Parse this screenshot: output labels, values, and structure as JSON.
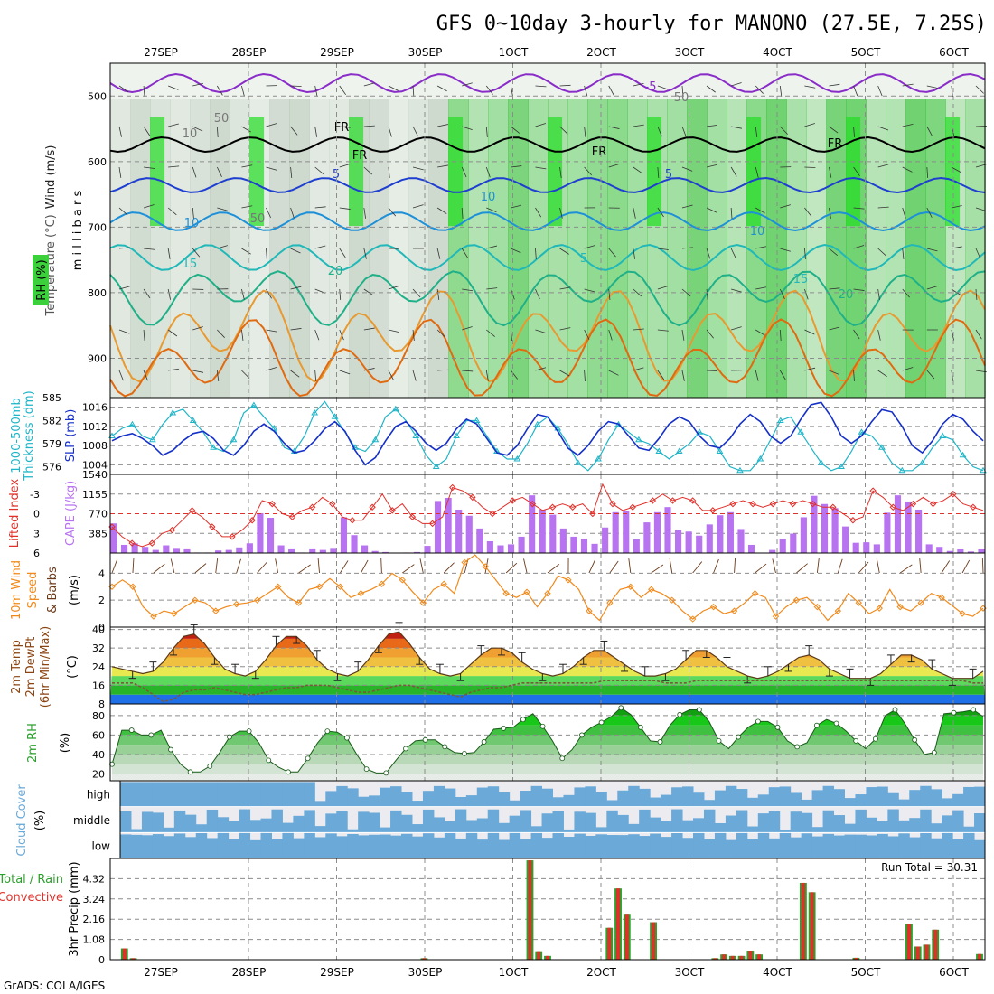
{
  "title": "GFS 0~10day 3-hourly for MANONO (27.5E, 7.25S)",
  "credit": "GrADS: COLA/IGES",
  "dates": [
    "27SEP",
    "28SEP",
    "29SEP",
    "30SEP",
    "1OCT",
    "2OCT",
    "3OCT",
    "4OCT",
    "5OCT",
    "6OCT"
  ],
  "colors": {
    "green": "#2ca02c",
    "orange": "#f08a1c",
    "purple": "#b874f0",
    "cyan": "#1fb5c8",
    "blue": "#1530c8",
    "red": "#e0302a",
    "cloud": "#6aa9d8",
    "cloudclear": "#ececf0"
  },
  "chart_data": [
    {
      "type": "contour",
      "panel": "upper-air",
      "ylabel": "m i l l i b a r s",
      "side_labels": [
        "Wind (m/s)",
        "Temperature (°C)",
        "RH (%)"
      ],
      "yticks": [
        500,
        600,
        700,
        800,
        900
      ],
      "ylim": [
        960,
        450
      ],
      "contour_labels": [
        "-5",
        "FR",
        "5",
        "10",
        "15",
        "20",
        "50",
        "10"
      ],
      "contour_label_list": [
        "-5",
        "FR",
        "FR",
        "FR",
        "FR",
        "5",
        "5",
        "10",
        "10",
        "10",
        "15",
        "15",
        "20",
        "20",
        "5",
        "50",
        "10",
        "50",
        "50"
      ]
    },
    {
      "type": "line",
      "panel": "thickness-slp",
      "series": [
        {
          "name": "1000-500mb Thickness (dm)",
          "yticks": [
            576,
            579,
            582,
            585
          ],
          "ylim": [
            575,
            585
          ],
          "values": [
            580,
            581,
            581.5,
            580,
            579.5,
            581.5,
            583,
            583.5,
            582,
            580.5,
            578.5,
            578,
            579.5,
            583,
            584,
            582.5,
            581,
            578.5,
            578,
            580,
            583,
            584.5,
            582.5,
            580.5,
            578.5,
            578,
            579.5,
            582.5,
            583.5,
            582,
            580,
            577.5,
            576,
            577,
            580,
            582,
            582,
            580,
            578,
            577,
            577,
            579,
            581.5,
            582.5,
            581,
            579,
            576.5,
            575.5,
            577,
            579.5,
            581.5,
            580.5,
            579.5,
            579,
            578,
            577,
            578,
            579,
            580.5,
            580,
            578,
            576,
            575.5,
            575.5,
            577,
            579.5,
            582,
            582.5,
            580.5,
            578.5,
            576.5,
            575.5,
            576,
            578,
            580.5,
            580,
            578.5,
            576.5,
            575.5,
            575.5,
            576.5,
            578.5,
            580,
            579.5,
            577.5,
            576,
            575.5
          ]
        },
        {
          "name": "SLP (mb)",
          "yticks": [
            1004,
            1008,
            1012,
            1016
          ],
          "ylim": [
            1002,
            1018
          ],
          "values": [
            1009,
            1010,
            1010.5,
            1009.5,
            1008,
            1006,
            1007,
            1009,
            1010.5,
            1011,
            1009.5,
            1007,
            1006,
            1008,
            1011,
            1012.5,
            1011,
            1008.5,
            1006.5,
            1007,
            1009,
            1011.5,
            1013,
            1011,
            1007,
            1004,
            1005.5,
            1009,
            1012,
            1013,
            1011,
            1008.5,
            1007,
            1008.5,
            1011.5,
            1013.5,
            1012.5,
            1009.5,
            1006.5,
            1006,
            1008,
            1011.5,
            1014.5,
            1014,
            1011,
            1007.5,
            1006,
            1008,
            1011,
            1013,
            1012.5,
            1010,
            1007.5,
            1007,
            1009.5,
            1012.5,
            1014,
            1013,
            1010,
            1008,
            1007.5,
            1009.5,
            1012.5,
            1014.5,
            1013,
            1010,
            1008.5,
            1010,
            1013.5,
            1016.5,
            1017,
            1014,
            1010,
            1008.5,
            1010,
            1013,
            1015.5,
            1015,
            1012,
            1008,
            1006.5,
            1009,
            1012.5,
            1014.5,
            1013.5,
            1011,
            1009
          ]
        }
      ]
    },
    {
      "type": "bar",
      "panel": "lifted-index-cape",
      "series": [
        {
          "name": "Lifted Index",
          "yticks": [
            -3,
            0,
            3,
            6
          ],
          "ylim": [
            6,
            -6
          ],
          "values": [
            2,
            3.5,
            4.5,
            5,
            4.5,
            3,
            2.5,
            1,
            -0.5,
            0.5,
            2,
            3.5,
            3.5,
            2.5,
            1,
            -2,
            -1.5,
            0,
            0.5,
            -0.5,
            -1,
            -2.5,
            -1.5,
            0.5,
            1,
            1,
            -1,
            -3,
            -0.5,
            -1.5,
            0.5,
            1.5,
            1.5,
            0.5,
            -4,
            -3.5,
            -2.5,
            -1,
            0,
            -1,
            -2,
            -2.5,
            -1.5,
            -0.5,
            -1,
            -1.5,
            -1,
            -1.5,
            0,
            -4.5,
            -1.5,
            -0.5,
            -1,
            -1.5,
            -2,
            -3,
            -2,
            -2.5,
            -2,
            -0.5,
            -0.5,
            -1,
            -1.5,
            -2,
            -1.5,
            -1,
            -1.5,
            -2,
            -1.5,
            -2,
            -1.5,
            -1,
            -1,
            0,
            1,
            0.5,
            -3.5,
            -2.5,
            -1,
            -0.5,
            -1.5,
            -2.5,
            -1.5,
            -2,
            -3,
            -1.5,
            -1,
            -0.5
          ]
        },
        {
          "name": "CAPE (J/kg)",
          "yticks": [
            385,
            770,
            1155,
            1540
          ],
          "ylim": [
            0,
            1540
          ],
          "values": [
            580,
            160,
            190,
            120,
            60,
            150,
            100,
            90,
            10,
            10,
            50,
            60,
            110,
            190,
            780,
            690,
            150,
            90,
            10,
            90,
            60,
            100,
            700,
            350,
            150,
            40,
            20,
            0,
            10,
            20,
            140,
            1020,
            1080,
            850,
            730,
            480,
            230,
            150,
            170,
            320,
            1130,
            850,
            750,
            480,
            320,
            280,
            180,
            500,
            800,
            830,
            270,
            600,
            800,
            900,
            450,
            420,
            340,
            560,
            740,
            800,
            470,
            160,
            0,
            60,
            280,
            380,
            700,
            1120,
            960,
            880,
            520,
            200,
            210,
            170,
            790,
            1130,
            1010,
            850,
            170,
            120,
            40,
            80,
            30,
            80
          ]
        }
      ]
    },
    {
      "type": "line",
      "panel": "10m-wind",
      "ylabel": "(m/s)",
      "side_labels": [
        "10m Wind",
        "Speed",
        "& Barbs"
      ],
      "yticks": [
        0,
        2,
        4
      ],
      "ylim": [
        0,
        5.5
      ],
      "values": [
        3,
        3.5,
        3,
        1.5,
        0.8,
        1.2,
        1,
        1.5,
        2,
        1.8,
        1.2,
        1.5,
        1.7,
        1.8,
        2,
        2.5,
        3,
        2.2,
        1.8,
        2.8,
        3,
        3.6,
        3,
        2.2,
        2.5,
        2.8,
        3.2,
        4,
        3.5,
        2.6,
        1.8,
        2.8,
        3.2,
        2.5,
        4.8,
        6,
        4.5,
        3.5,
        2.5,
        2.2,
        2.6,
        1.5,
        2.5,
        3.8,
        3.5,
        2.8,
        1.2,
        0.5,
        1.8,
        2.8,
        3,
        2.2,
        2.8,
        2.5,
        2,
        1.2,
        0.6,
        1.2,
        1.5,
        1,
        1.2,
        1.8,
        2.5,
        2.2,
        0.8,
        1.5,
        2,
        2.2,
        1.5,
        0.5,
        1.2,
        2.5,
        1.8,
        1,
        1.4,
        2.8,
        1.5,
        1.2,
        1.8,
        2.5,
        2.2,
        1.6,
        1,
        0.8,
        1.4
      ]
    },
    {
      "type": "area",
      "panel": "2m-temp",
      "ylabel": "(°C)",
      "side_labels": [
        "2m Temp",
        "2m DewPt",
        "(6hr Min/Max)"
      ],
      "yticks": [
        8,
        16,
        24,
        32,
        40
      ],
      "ylim": [
        8,
        41
      ],
      "series": [
        {
          "name": "2m Temp",
          "values": [
            24,
            23,
            22,
            21,
            22,
            26,
            32,
            37,
            38,
            34,
            28,
            23,
            21,
            20,
            22,
            27,
            33,
            37,
            37,
            33,
            27,
            23,
            21,
            20,
            22,
            27,
            33,
            38,
            39,
            34,
            28,
            23,
            21,
            20,
            21,
            25,
            29,
            32,
            32,
            30,
            26,
            23,
            21,
            20,
            21,
            24,
            28,
            31,
            31,
            28,
            25,
            22,
            20,
            20,
            21,
            23,
            27,
            31,
            31,
            28,
            24,
            22,
            20,
            19,
            20,
            22,
            25,
            28,
            29,
            27,
            23,
            21,
            19,
            19,
            19,
            21,
            25,
            29,
            29,
            27,
            23,
            21,
            19,
            19,
            19,
            22
          ]
        },
        {
          "name": "2m DewPt",
          "values": [
            17,
            17,
            17,
            15,
            12,
            9,
            10,
            13,
            14,
            14,
            15,
            14,
            13,
            12,
            12,
            13,
            14,
            15,
            15,
            16,
            16,
            16,
            15,
            14,
            13,
            13,
            14,
            15,
            16,
            16,
            15,
            14,
            13,
            12,
            11,
            13,
            14,
            15,
            15,
            16,
            17,
            17,
            17,
            17,
            17,
            17,
            17,
            17,
            18,
            18,
            18,
            18,
            18,
            18,
            17,
            17,
            17,
            18,
            18,
            18,
            18,
            18,
            18,
            18,
            18,
            18,
            18,
            18,
            18,
            18,
            18,
            18,
            18,
            18,
            18,
            18,
            18,
            18,
            18,
            18,
            18,
            18,
            18,
            18,
            17,
            17
          ]
        }
      ]
    },
    {
      "type": "area",
      "panel": "2m-rh",
      "ylabel": "(%)",
      "side_labels": [
        "2m RH"
      ],
      "yticks": [
        20,
        40,
        60,
        80
      ],
      "ylim": [
        13,
        92
      ],
      "values": [
        30,
        65,
        65,
        60,
        60,
        65,
        45,
        30,
        22,
        22,
        28,
        42,
        58,
        64,
        64,
        52,
        34,
        27,
        22,
        22,
        36,
        52,
        64,
        63,
        57,
        40,
        25,
        21,
        21,
        34,
        46,
        54,
        55,
        55,
        48,
        42,
        41,
        42,
        53,
        66,
        67,
        68,
        76,
        82,
        69,
        54,
        36,
        45,
        60,
        68,
        73,
        79,
        88,
        81,
        68,
        54,
        53,
        70,
        81,
        86,
        86,
        74,
        54,
        46,
        58,
        68,
        74,
        74,
        68,
        54,
        48,
        52,
        70,
        76,
        72,
        64,
        54,
        46,
        56,
        80,
        86,
        72,
        55,
        40,
        42,
        82,
        83,
        84,
        86,
        79
      ]
    },
    {
      "type": "bar",
      "panel": "cloud-cover",
      "ylabel": "(%)",
      "side_labels": [
        "Cloud Cover"
      ],
      "layers": [
        "high",
        "middle",
        "low"
      ]
    },
    {
      "type": "bar",
      "panel": "precip",
      "ylabel": "3hr Precip (mm)",
      "side_labels": [
        "Total / Rain",
        "Convective"
      ],
      "yticks": [
        0,
        1.08,
        2.16,
        3.24,
        4.32
      ],
      "ylim": [
        0,
        5.4
      ],
      "run_total": "Run Total = 30.31",
      "values": [
        0,
        0.6,
        0.08,
        0,
        0,
        0,
        0,
        0,
        0,
        0,
        0,
        0,
        0,
        0,
        0,
        0,
        0,
        0,
        0,
        0,
        0,
        0,
        0,
        0,
        0,
        0,
        0,
        0,
        0,
        0,
        0,
        0,
        0,
        0,
        0,
        0.08,
        0,
        0,
        0,
        0,
        0,
        0,
        0,
        0,
        0,
        0,
        0,
        5.3,
        0.45,
        0.2,
        0,
        0,
        0,
        0,
        0,
        0,
        1.7,
        3.8,
        2.4,
        0,
        0,
        2,
        0,
        0,
        0,
        0,
        0,
        0,
        0.08,
        0.28,
        0.2,
        0.2,
        0.48,
        0.28,
        0,
        0,
        0,
        0,
        4.1,
        3.6,
        0,
        0,
        0,
        0,
        0.1,
        0,
        0,
        0,
        0,
        0,
        1.9,
        0.7,
        0.8,
        1.6,
        0,
        0,
        0,
        0,
        0.3
      ]
    }
  ]
}
